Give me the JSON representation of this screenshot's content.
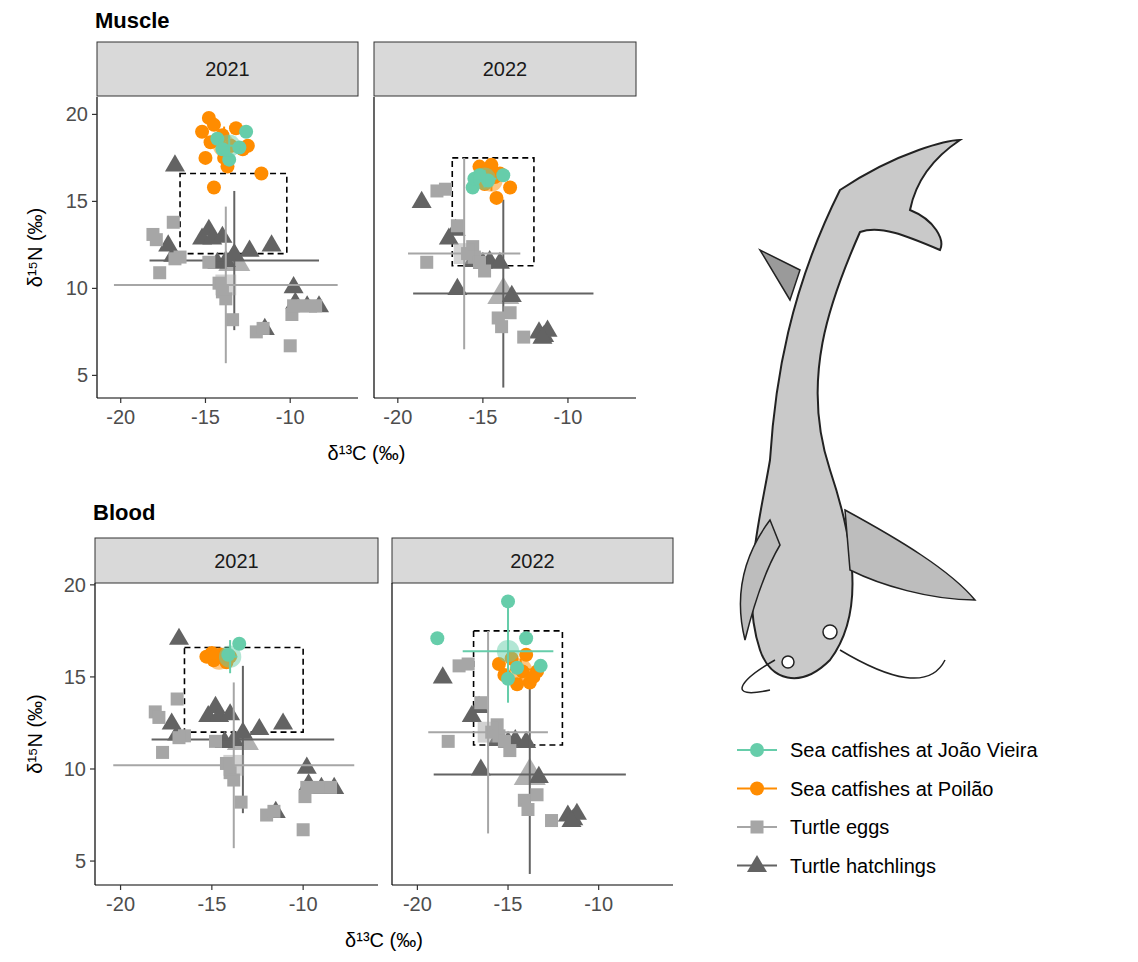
{
  "chart_data": [
    {
      "type": "scatter",
      "title": "Muscle",
      "subtitle": "2021",
      "x_label": "δ¹³C (‰)",
      "y_label": "δ¹⁵N (‰)",
      "xlim": [
        -21.4,
        -6.0
      ],
      "ylim": [
        3.7,
        21.0
      ],
      "xticks": [
        -20,
        -15,
        -10
      ],
      "yticks": [
        5,
        10,
        15,
        20
      ],
      "legend": "right",
      "reference_box": {
        "x": [
          -16.5,
          -10.2
        ],
        "y": [
          12.0,
          16.6
        ]
      },
      "series": [
        {
          "name": "Sea catfishes at João Vieira",
          "color": "#66cdaa",
          "marker": "circle",
          "x": [
            -14.3,
            -13.6,
            -12.6,
            -13.0,
            -14.0
          ],
          "values": [
            18.6,
            17.4,
            19.0,
            18.1,
            18.0
          ],
          "mean_x": -13.6,
          "mean_y": 18.2,
          "sd_x": 0.6,
          "sd_y": 0.6
        },
        {
          "name": "Sea catfishes at Poilão",
          "color": "#ff8c00",
          "marker": "circle",
          "x": [
            -14.8,
            -14.5,
            -15.2,
            -14.0,
            -13.5,
            -12.8,
            -14.7,
            -13.9,
            -12.5,
            -11.7,
            -14.5,
            -15.0,
            -13.2,
            -13.7
          ],
          "values": [
            19.8,
            19.4,
            19.0,
            18.8,
            18.2,
            18.0,
            18.4,
            17.5,
            18.2,
            16.6,
            15.8,
            17.5,
            19.2,
            17.0
          ],
          "mean_x": -13.9,
          "mean_y": 18.2,
          "sd_x": 0.9,
          "sd_y": 1.1
        },
        {
          "name": "Turtle eggs",
          "color": "#a6a6a6",
          "marker": "square",
          "x": [
            -18.1,
            -17.9,
            -17.7,
            -16.9,
            -16.5,
            -16.8,
            -14.8,
            -14.2,
            -14.0,
            -13.8,
            -13.4,
            -12.0,
            -11.6,
            -10.0,
            -9.9,
            -9.8,
            -9.2,
            -8.5
          ],
          "values": [
            13.1,
            12.8,
            10.9,
            13.8,
            11.8,
            11.7,
            11.5,
            10.3,
            9.8,
            9.4,
            8.2,
            7.5,
            7.7,
            6.7,
            8.5,
            9.0,
            9.0,
            9.0
          ],
          "mean_x": -13.8,
          "mean_y": 10.2,
          "sd_x": 6.6,
          "sd_y": 4.5
        },
        {
          "name": "Turtle hatchlings",
          "color": "#636363",
          "marker": "triangle",
          "x": [
            -16.8,
            -17.2,
            -16.9,
            -15.2,
            -14.8,
            -14.6,
            -14.0,
            -13.8,
            -12.4,
            -11.1,
            -14.3,
            -9.8,
            -9.7,
            -9.0,
            -8.3,
            -11.5,
            -13.3
          ],
          "values": [
            17.1,
            12.5,
            11.9,
            12.9,
            13.4,
            12.9,
            13.0,
            11.6,
            12.2,
            12.5,
            11.5,
            10.1,
            9.2,
            9.0,
            9.0,
            7.7,
            12.0
          ],
          "mean_x": -13.3,
          "mean_y": 11.6,
          "sd_x": 5.0,
          "sd_y": 4.0
        }
      ]
    },
    {
      "type": "scatter",
      "subtitle": "2022",
      "tick_labels": "x",
      "xlim": [
        -21.4,
        -6.0
      ],
      "ylim": [
        3.7,
        21.0
      ],
      "xticks": [
        -20,
        -15,
        -10
      ],
      "yticks": [
        5,
        10,
        15,
        20
      ],
      "reference_box": {
        "x": [
          -16.8,
          -12.0
        ],
        "y": [
          11.3,
          17.5
        ]
      },
      "series": [
        {
          "x": [
            -15.6,
            -15.2,
            -14.7,
            -13.8,
            -15.5
          ],
          "values": [
            15.8,
            16.5,
            16.2,
            16.5,
            16.3
          ],
          "mean_x": -14.9,
          "mean_y": 16.3,
          "sd_x": 0.7,
          "sd_y": 0.5
        },
        {
          "x": [
            -15.2,
            -14.8,
            -14.3,
            -13.4,
            -14.2,
            -14.9,
            -14.5,
            -14.0
          ],
          "values": [
            17.0,
            16.7,
            16.4,
            15.8,
            15.2,
            16.0,
            17.1,
            16.6
          ],
          "mean_x": -14.5,
          "mean_y": 16.2,
          "sd_x": 0.6,
          "sd_y": 0.6
        },
        {
          "x": [
            -17.7,
            -17.2,
            -18.3,
            -16.5,
            -15.9,
            -15.6,
            -15.5,
            -14.9,
            -14.1,
            -13.9,
            -13.4,
            -12.6,
            -15.2
          ],
          "values": [
            15.6,
            15.7,
            11.5,
            13.6,
            12.0,
            12.4,
            11.8,
            11.0,
            8.3,
            7.8,
            8.6,
            7.2,
            11.5
          ],
          "mean_x": -16.1,
          "mean_y": 12.0,
          "sd_x": 3.3,
          "sd_y": 5.5
        },
        {
          "x": [
            -18.6,
            -16.6,
            -17.0,
            -16.5,
            -15.6,
            -15.0,
            -14.6,
            -14.0,
            -13.3,
            -11.7,
            -11.4,
            -11.2,
            -11.5
          ],
          "values": [
            15.0,
            13.4,
            12.9,
            10.0,
            11.6,
            11.5,
            11.6,
            11.5,
            9.6,
            7.5,
            7.3,
            7.6,
            7.2
          ],
          "mean_x": -13.8,
          "mean_y": 9.7,
          "sd_x": 5.3,
          "sd_y": 5.4
        }
      ]
    },
    {
      "type": "scatter",
      "title": "Blood",
      "subtitle": "2021",
      "x_label": "δ¹³C (‰)",
      "y_label": "δ¹⁵N (‰)",
      "xlim": [
        -21.4,
        -5.9
      ],
      "ylim": [
        3.7,
        20.1
      ],
      "xticks": [
        -20,
        -15,
        -10
      ],
      "yticks": [
        5,
        10,
        15,
        20
      ],
      "reference_box": {
        "x": [
          -16.5,
          -10.0
        ],
        "y": [
          12.0,
          16.6
        ]
      },
      "series": [
        {
          "x": [
            -13.5,
            -14.1
          ],
          "values": [
            16.8,
            16.2
          ],
          "mean_x": -14.0,
          "mean_y": 16.1,
          "sd_x": 0.4,
          "sd_y": 0.9
        },
        {
          "x": [
            -15.3,
            -14.9,
            -14.5,
            -14.2,
            -14.0,
            -15.0
          ],
          "values": [
            16.1,
            15.9,
            16.2,
            15.8,
            16.1,
            16.3
          ],
          "mean_x": -14.6,
          "mean_y": 16.0,
          "sd_x": 0.9,
          "sd_y": 0.3
        },
        {
          "x": [
            -18.1,
            -17.9,
            -17.7,
            -16.9,
            -16.5,
            -16.8,
            -14.8,
            -14.2,
            -14.0,
            -13.8,
            -13.4,
            -12.0,
            -11.6,
            -10.0,
            -9.9,
            -9.8,
            -9.2,
            -8.5
          ],
          "values": [
            13.1,
            12.8,
            10.9,
            13.8,
            11.8,
            11.7,
            11.5,
            10.3,
            9.8,
            9.4,
            8.2,
            7.5,
            7.7,
            6.7,
            8.5,
            9.0,
            9.0,
            9.0
          ],
          "mean_x": -13.8,
          "mean_y": 10.2,
          "sd_x": 6.6,
          "sd_y": 4.5
        },
        {
          "x": [
            -16.8,
            -17.2,
            -16.9,
            -15.2,
            -14.8,
            -14.6,
            -14.0,
            -13.8,
            -12.4,
            -11.1,
            -14.3,
            -9.8,
            -9.7,
            -9.0,
            -8.3,
            -11.5,
            -13.3
          ],
          "values": [
            17.1,
            12.5,
            11.9,
            12.9,
            13.4,
            12.9,
            13.0,
            11.6,
            12.2,
            12.5,
            11.5,
            10.1,
            9.2,
            9.0,
            9.0,
            7.7,
            12.0
          ],
          "mean_x": -13.3,
          "mean_y": 11.6,
          "sd_x": 5.0,
          "sd_y": 4.0
        }
      ]
    },
    {
      "type": "scatter",
      "subtitle": "2022",
      "tick_labels": "x",
      "xlim": [
        -21.4,
        -5.9
      ],
      "ylim": [
        3.7,
        20.1
      ],
      "xticks": [
        -20,
        -15,
        -10
      ],
      "yticks": [
        5,
        10,
        15,
        20
      ],
      "reference_box": {
        "x": [
          -16.9,
          -12.0
        ],
        "y": [
          11.3,
          17.5
        ]
      },
      "series": [
        {
          "x": [
            -18.9,
            -15.0,
            -14.0,
            -13.2,
            -15.0,
            -14.5
          ],
          "values": [
            17.1,
            19.1,
            17.1,
            15.6,
            14.9,
            15.5
          ],
          "mean_x": -15.0,
          "mean_y": 16.4,
          "sd_x": 2.5,
          "sd_y": 2.8
        },
        {
          "x": [
            -14.8,
            -14.2,
            -13.8,
            -13.4,
            -14.5,
            -15.5,
            -14.0,
            -13.6,
            -15.2
          ],
          "values": [
            16.0,
            15.3,
            14.7,
            15.3,
            14.6,
            15.7,
            16.2,
            15.0,
            15.1
          ],
          "mean_x": -14.3,
          "mean_y": 15.4,
          "sd_x": 0.6,
          "sd_y": 0.6
        },
        {
          "x": [
            -17.7,
            -17.2,
            -18.3,
            -16.5,
            -15.9,
            -15.6,
            -15.5,
            -14.9,
            -14.1,
            -13.9,
            -13.4,
            -12.6,
            -15.2
          ],
          "values": [
            15.6,
            15.7,
            11.5,
            13.6,
            12.0,
            12.4,
            11.8,
            11.0,
            8.3,
            7.8,
            8.6,
            7.2,
            11.5
          ],
          "mean_x": -16.1,
          "mean_y": 12.0,
          "sd_x": 3.3,
          "sd_y": 5.5
        },
        {
          "x": [
            -18.6,
            -16.6,
            -17.0,
            -16.5,
            -15.6,
            -15.0,
            -14.6,
            -14.0,
            -13.3,
            -11.7,
            -11.4,
            -11.2,
            -11.5
          ],
          "values": [
            15.0,
            13.4,
            12.9,
            10.0,
            11.6,
            11.5,
            11.6,
            11.5,
            9.6,
            7.5,
            7.3,
            7.6,
            7.2
          ],
          "mean_x": -13.8,
          "mean_y": 9.7,
          "sd_x": 5.3,
          "sd_y": 5.4
        }
      ]
    }
  ]
}
